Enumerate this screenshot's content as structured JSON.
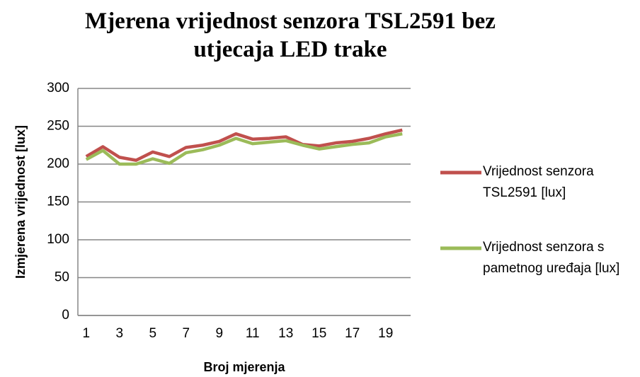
{
  "chart_data": {
    "type": "line",
    "title": "Mjerena vrijednost senzora TSL2591 bez utjecaja LED trake",
    "x_label": "Broj mjerenja",
    "y_label": "Izmjerena vrijednost [lux]",
    "categories": [
      1,
      null,
      3,
      null,
      5,
      null,
      7,
      null,
      9,
      null,
      11,
      null,
      13,
      null,
      15,
      null,
      17,
      null,
      19,
      null
    ],
    "series": [
      {
        "name": "Vrijednost senzora TSL2591 [lux]",
        "color": "#c0504d",
        "values": [
          210,
          223,
          209,
          205,
          216,
          210,
          222,
          225,
          230,
          240,
          233,
          234,
          236,
          226,
          224,
          228,
          230,
          234,
          240,
          245
        ]
      },
      {
        "name": "Vrijednost senzora s pametnog uređaja [lux]",
        "color": "#9bbb59",
        "values": [
          206,
          218,
          200,
          200,
          207,
          201,
          215,
          219,
          225,
          234,
          227,
          229,
          231,
          225,
          220,
          223,
          226,
          228,
          236,
          240
        ]
      }
    ],
    "ylim": [
      0,
      300
    ],
    "yticks": [
      0,
      50,
      100,
      150,
      200,
      250,
      300
    ],
    "grid": true,
    "legend": "right"
  }
}
